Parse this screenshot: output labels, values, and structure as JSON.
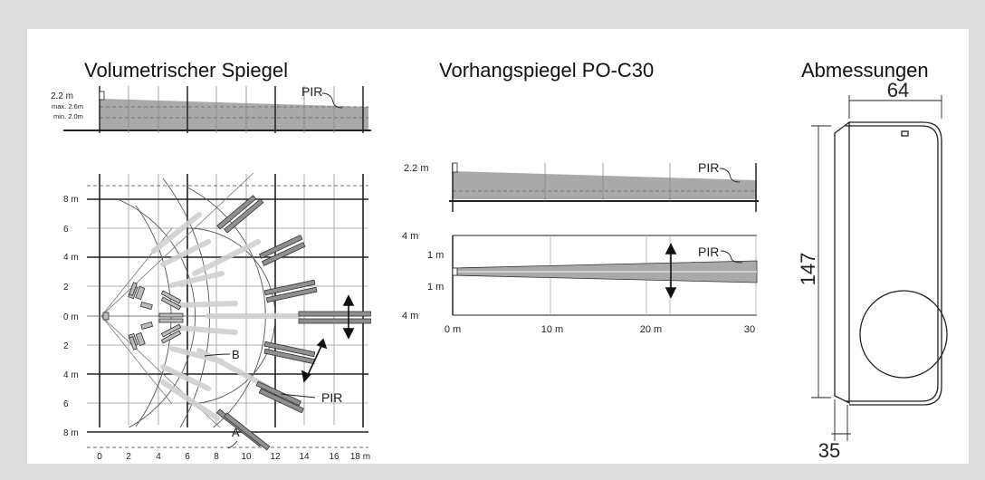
{
  "panels": {
    "volumetric": {
      "title": "Volumetrischer Spiegel",
      "side_view": {
        "height_label": "2.2 m",
        "max_label": "max. 2.6m",
        "min_label": "min. 2.0m",
        "sensor_label": "PIR"
      },
      "plan_view": {
        "y_labels": [
          "8 m",
          "6",
          "4 m",
          "2",
          "0 m",
          "2",
          "4 m",
          "6",
          "8 m"
        ],
        "x_labels": [
          "0",
          "2",
          "4",
          "6",
          "8",
          "10",
          "12",
          "14",
          "16",
          "18 m"
        ],
        "label_pir": "PIR",
        "label_a": "A",
        "label_b": "B"
      }
    },
    "curtain": {
      "title": "Vorhangspiegel PO-C30",
      "side_view": {
        "height_label": "2.2 m",
        "sensor_label": "PIR"
      },
      "plan_view": {
        "top_label": "4 m",
        "upper_label": "1 m",
        "lower_label": "1 m",
        "bottom_label": "4 m",
        "sensor_label": "PIR",
        "x_labels": [
          "0 m",
          "10 m",
          "20 m",
          "30"
        ]
      }
    },
    "dimensions": {
      "title": "Abmessungen",
      "width_label": "64",
      "height_label": "147",
      "depth_label": "35"
    }
  },
  "colors": {
    "zone_fill": "#a9a9a9",
    "grid": "#555555",
    "beam_light": "#d0d0d0"
  }
}
